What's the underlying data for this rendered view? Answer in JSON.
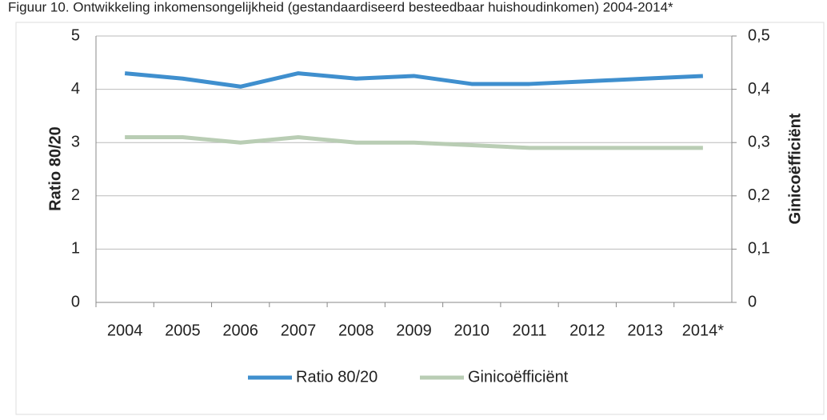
{
  "chart_data": {
    "type": "line",
    "title": "Figuur 10. Ontwikkeling inkomensongelijkheid (gestandaardiseerd besteedbaar huishoudinkomen) 2004-2014*",
    "categories": [
      "2004",
      "2005",
      "2006",
      "2007",
      "2008",
      "2009",
      "2010",
      "2011",
      "2012",
      "2013",
      "2014*"
    ],
    "series": [
      {
        "name": "Ratio 80/20",
        "color": "#3f8fce",
        "values": [
          4.3,
          4.2,
          4.05,
          4.3,
          4.2,
          4.25,
          4.1,
          4.1,
          4.15,
          4.2,
          4.25
        ]
      },
      {
        "name": "Ginicoëfficiënt",
        "color": "#b9cdb4",
        "axis": "y2",
        "values": [
          0.31,
          0.31,
          0.3,
          0.31,
          0.3,
          0.3,
          0.295,
          0.29,
          0.29,
          0.29,
          0.29
        ]
      }
    ],
    "ylabel": "Ratio 80/20",
    "y2label": "Ginicoëfficiënt",
    "ylim": [
      0,
      5
    ],
    "yticks": [
      0,
      1,
      2,
      3,
      4,
      5
    ],
    "y2lim": [
      0,
      0.5
    ],
    "y2ticks": [
      0,
      {
        "value": 0.1,
        "label": "0,1"
      },
      {
        "value": 0.2,
        "label": "0,2"
      },
      {
        "value": 0.3,
        "label": "0,3"
      },
      {
        "value": 0.4,
        "label": "0,4"
      },
      {
        "value": 0.5,
        "label": "0,5"
      }
    ],
    "grid": true,
    "legend": "bottom"
  }
}
